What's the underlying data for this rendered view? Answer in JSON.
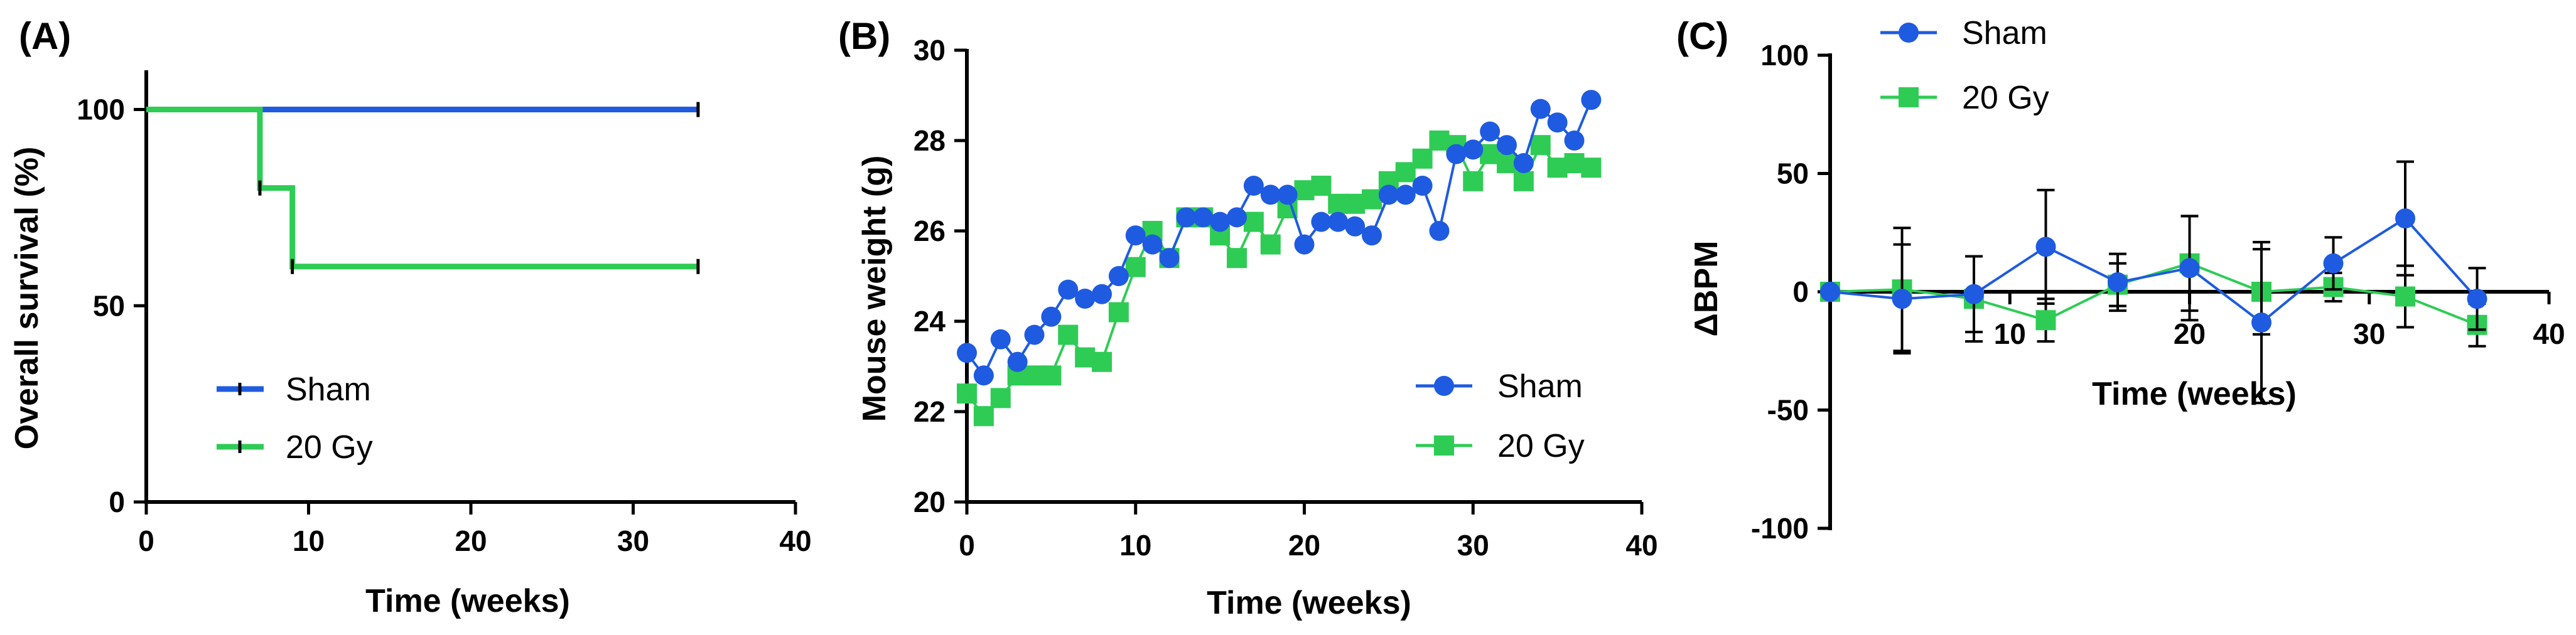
{
  "colors": {
    "sham": "#1E5BE0",
    "gy20": "#2ECC55",
    "axis": "#000000"
  },
  "chart_data": [
    {
      "panel": "(A)",
      "type": "line",
      "step": true,
      "xlabel": "Time (weeks)",
      "ylabel": "Overall survival (%)",
      "xlim": [
        0,
        40
      ],
      "ylim": [
        0,
        110
      ],
      "xticks": [
        0,
        10,
        20,
        30,
        40
      ],
      "yticks": [
        0,
        50,
        100
      ],
      "legend_position": "lower-left",
      "series": [
        {
          "name": "Sham",
          "color_key": "sham",
          "x": [
            0,
            34
          ],
          "y": [
            100,
            100
          ],
          "censor": [
            [
              34,
              100
            ]
          ]
        },
        {
          "name": "20 Gy",
          "color_key": "gy20",
          "x": [
            0,
            7,
            7,
            9,
            9,
            34
          ],
          "y": [
            100,
            100,
            80,
            80,
            60,
            60
          ],
          "censor": [
            [
              7,
              80
            ],
            [
              9,
              60
            ],
            [
              34,
              60
            ]
          ]
        }
      ]
    },
    {
      "panel": "(B)",
      "type": "line",
      "xlabel": "Time (weeks)",
      "ylabel": "Mouse weight  (g)",
      "xlim": [
        0,
        40
      ],
      "ylim": [
        20,
        30
      ],
      "xticks": [
        0,
        10,
        20,
        30,
        40
      ],
      "yticks": [
        20,
        22,
        24,
        26,
        28,
        30
      ],
      "legend_position": "lower-right",
      "series": [
        {
          "name": "Sham",
          "marker": "circle",
          "color_key": "sham",
          "x": [
            0,
            1,
            2,
            3,
            4,
            5,
            6,
            7,
            8,
            9,
            10,
            11,
            12,
            13,
            14,
            15,
            16,
            17,
            18,
            19,
            20,
            21,
            22,
            23,
            24,
            25,
            26,
            27,
            28,
            29,
            30,
            31,
            32,
            33,
            34,
            35,
            36,
            37
          ],
          "y": [
            23.3,
            22.8,
            23.6,
            23.1,
            23.7,
            24.1,
            24.7,
            24.5,
            24.6,
            25.0,
            25.9,
            25.7,
            25.4,
            26.3,
            26.3,
            26.2,
            26.3,
            27.0,
            26.8,
            26.8,
            25.7,
            26.2,
            26.2,
            26.1,
            25.9,
            26.8,
            26.8,
            27.0,
            26.0,
            27.7,
            27.8,
            28.2,
            27.9,
            27.5,
            28.7,
            28.4,
            28.0,
            28.9
          ]
        },
        {
          "name": "20 Gy",
          "marker": "square",
          "color_key": "gy20",
          "x": [
            0,
            1,
            2,
            3,
            4,
            5,
            6,
            7,
            8,
            9,
            10,
            11,
            12,
            13,
            14,
            15,
            16,
            17,
            18,
            19,
            20,
            21,
            22,
            23,
            24,
            25,
            26,
            27,
            28,
            29,
            30,
            31,
            32,
            33,
            34,
            35,
            36,
            37
          ],
          "y": [
            22.4,
            21.9,
            22.3,
            22.8,
            22.8,
            22.8,
            23.7,
            23.2,
            23.1,
            24.2,
            25.2,
            26.0,
            25.4,
            26.3,
            26.3,
            25.9,
            25.4,
            26.2,
            25.7,
            26.5,
            26.9,
            27.0,
            26.6,
            26.6,
            26.7,
            27.1,
            27.3,
            27.6,
            28.0,
            27.9,
            27.1,
            27.7,
            27.5,
            27.1,
            27.9,
            27.4,
            27.5,
            27.4
          ]
        }
      ]
    },
    {
      "panel": "(C)",
      "type": "line",
      "xlabel": "Time (weeks)",
      "ylabel": "ΔBPM",
      "xlim": [
        0,
        40
      ],
      "ylim": [
        -100,
        100
      ],
      "xticks": [
        10,
        20,
        30,
        40
      ],
      "yticks": [
        -100,
        -50,
        0,
        50,
        100
      ],
      "legend_position": "top-left",
      "series": [
        {
          "name": "Sham",
          "marker": "circle",
          "color_key": "sham",
          "x": [
            0,
            4,
            8,
            12,
            16,
            20,
            24,
            28,
            32,
            36
          ],
          "y": [
            0,
            -3,
            -1,
            19,
            4,
            10,
            -13,
            12,
            31,
            -3
          ],
          "err": [
            0,
            23,
            16,
            24,
            12,
            22,
            34,
            11,
            24,
            13
          ]
        },
        {
          "name": "20 Gy",
          "marker": "square",
          "color_key": "gy20",
          "x": [
            0,
            4,
            8,
            12,
            16,
            20,
            24,
            28,
            32,
            36
          ],
          "y": [
            0,
            1,
            -3,
            -12,
            3,
            12,
            0,
            2,
            -2,
            -14
          ],
          "err": [
            0,
            26,
            18,
            9,
            9,
            20,
            18,
            6,
            13,
            9
          ]
        }
      ]
    }
  ]
}
